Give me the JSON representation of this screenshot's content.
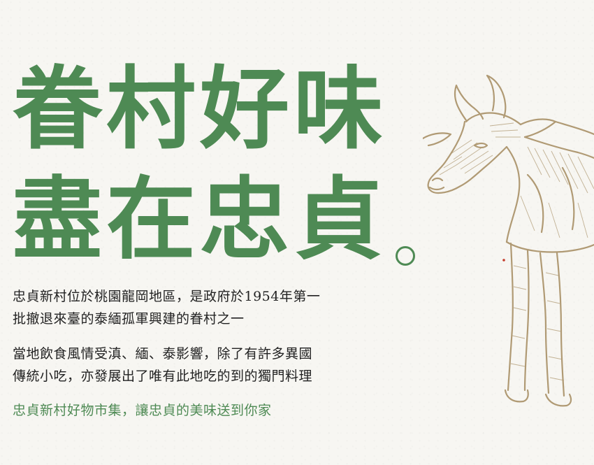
{
  "headline": {
    "line1": "眷村好味",
    "line2": "盡在忠貞"
  },
  "intro": {
    "lines": [
      "忠貞新村位於桃園龍岡地區，是政府於1954年第一",
      "批撤退來臺的泰緬孤軍興建的眷村之一"
    ]
  },
  "culture": {
    "lines": [
      "當地飲食風情受滇、緬、泰影響，除了有許多異國",
      "傳統小吃，亦發展出了唯有此地吃的到的獨門料理"
    ]
  },
  "tagline": "忠貞新村好物市集，讓忠貞的美味送到你家",
  "colors": {
    "brand_green": "#4e8a54",
    "illustration_tan": "#b09a74",
    "background": "#f7f6f2"
  },
  "illustration": {
    "icon": "water-buffaloes-illustration"
  }
}
